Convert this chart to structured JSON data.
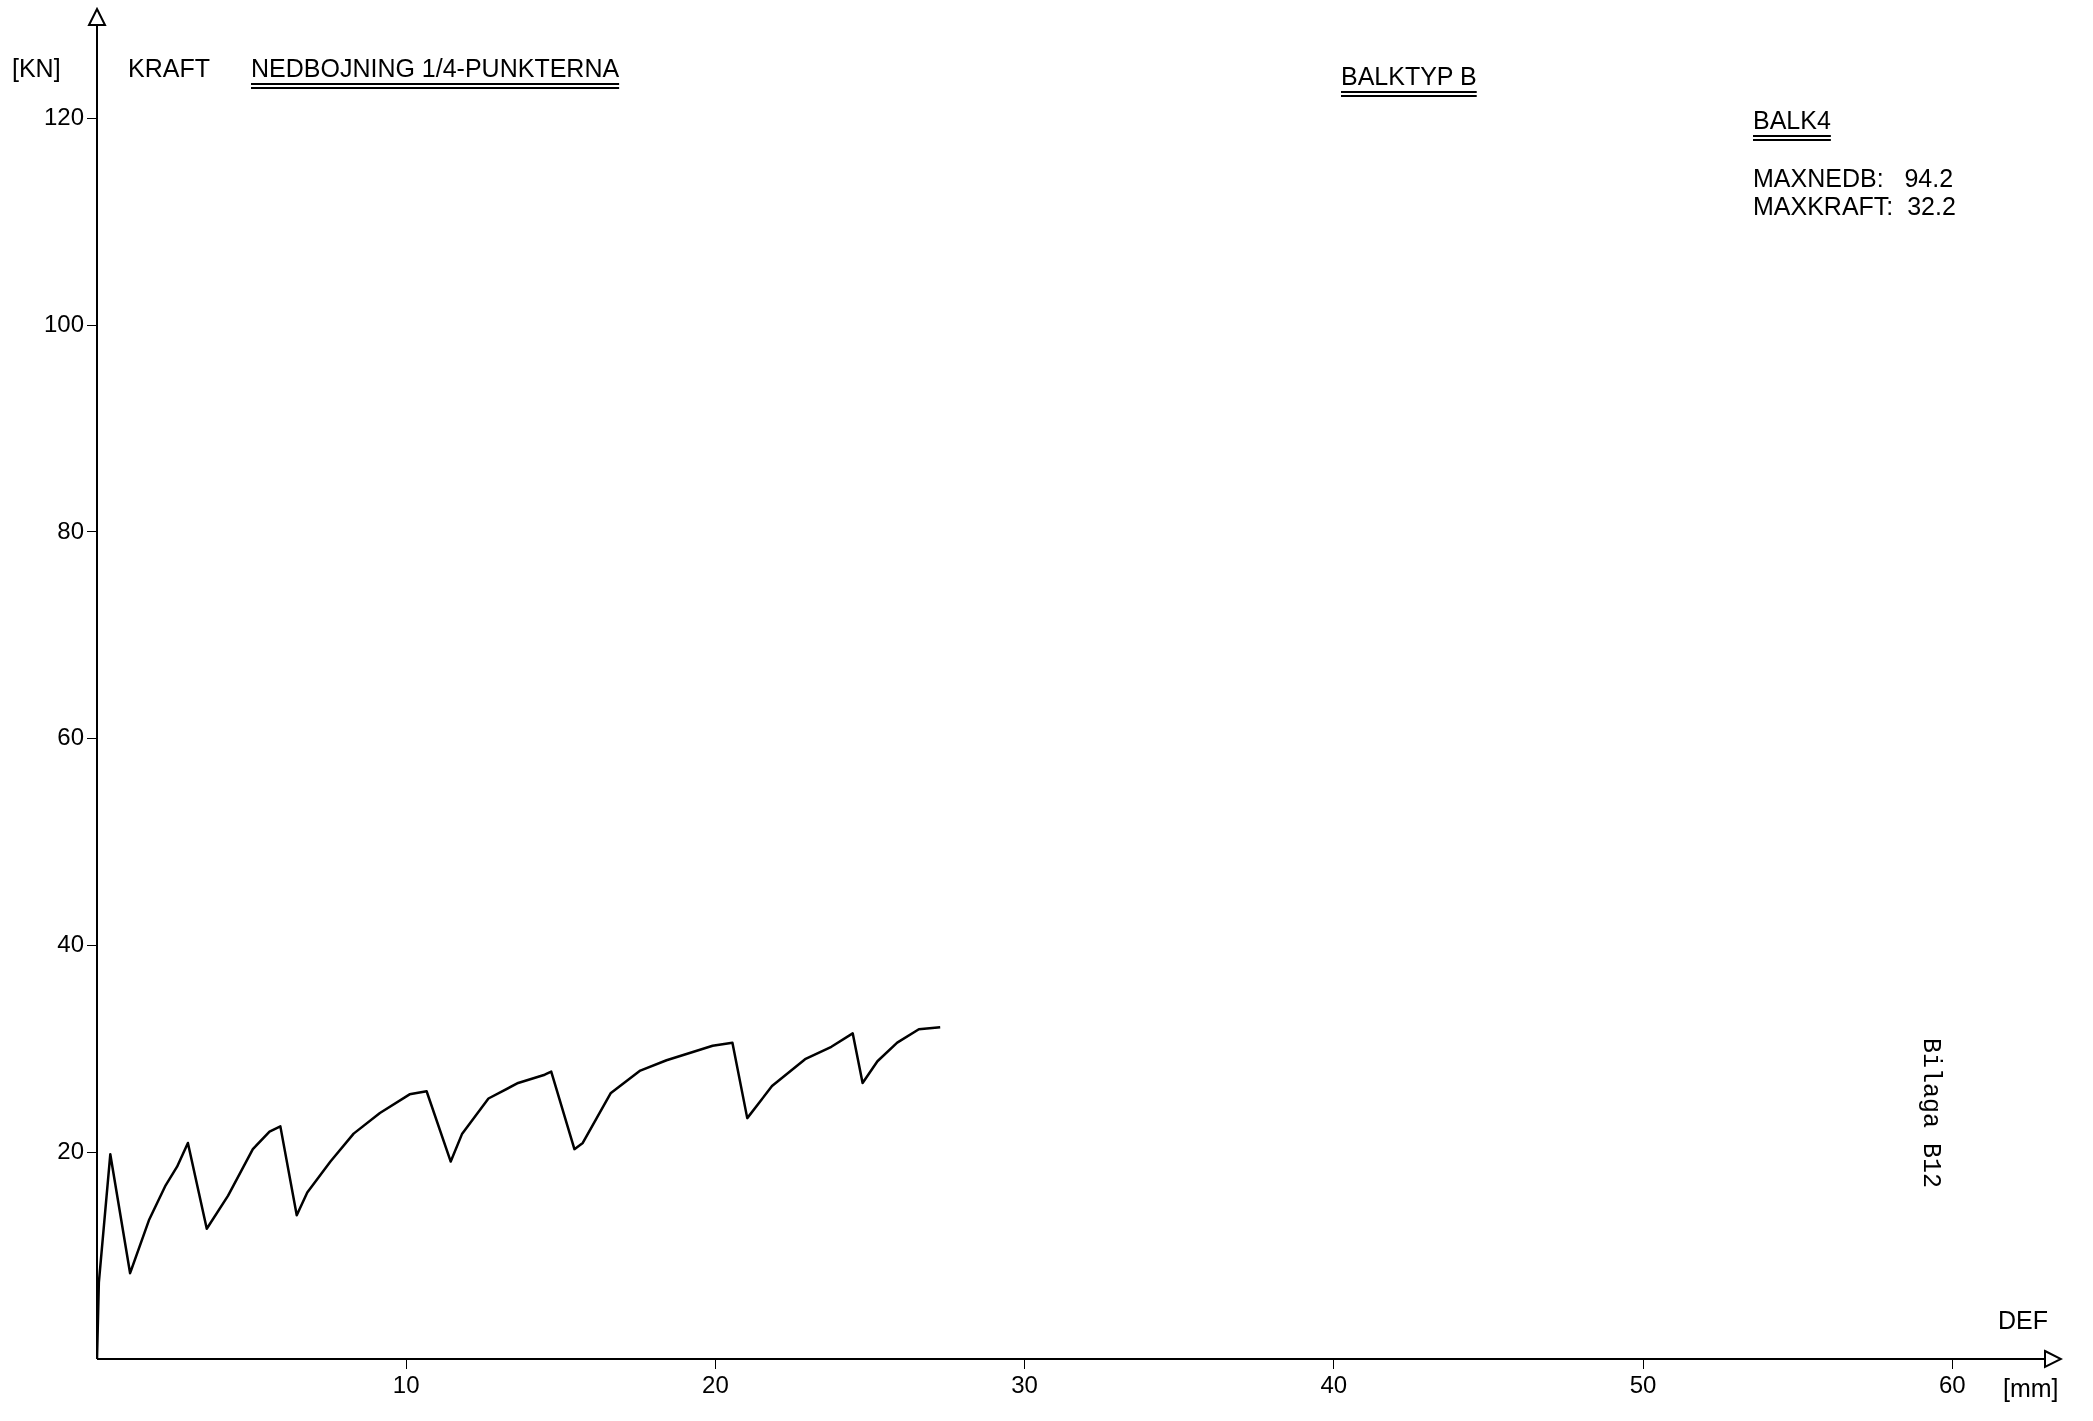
{
  "chart_data": {
    "type": "line",
    "title": "NEDBOJNING 1/4-PUNKTERNA",
    "subtitle": "BALKTYP B",
    "ylabel": "KRAFT",
    "xlabel": "DEF",
    "annotations": [
      "[KN]",
      "[mm]",
      "BALK4",
      "MAXNEDB:   94.2",
      "MAXKRAFT:  32.2",
      "Bilaga B12"
    ],
    "xlim": [
      0,
      63
    ],
    "ylim": [
      0,
      129
    ],
    "xticks": [
      10,
      20,
      30,
      40,
      50,
      60
    ],
    "yticks": [
      20,
      40,
      60,
      80,
      100,
      120
    ],
    "grid": false,
    "legend": false,
    "marker": "none",
    "line_style": "solid",
    "x": [
      0,
      0.06,
      0.43,
      1.07,
      1.69,
      2.22,
      2.59,
      2.94,
      3.55,
      4.24,
      5.04,
      5.58,
      5.93,
      6.46,
      6.8,
      7.55,
      8.3,
      9.15,
      10.11,
      10.66,
      11.44,
      11.81,
      12.66,
      13.62,
      14.48,
      14.69,
      15.44,
      15.71,
      16.61,
      17.57,
      18.42,
      19.27,
      19.91,
      20.55,
      21.03,
      21.83,
      22.9,
      23.75,
      24.44,
      24.76,
      25.24,
      25.88,
      26.58,
      27.27
    ],
    "series": [
      {
        "color": "#000000",
        "values": [
          0,
          7.4,
          19.8,
          8.3,
          13.5,
          16.8,
          18.6,
          20.9,
          12.6,
          15.8,
          20.3,
          22.0,
          22.5,
          13.9,
          16.1,
          19.1,
          21.8,
          23.8,
          25.6,
          25.9,
          19.1,
          21.8,
          25.2,
          26.7,
          27.5,
          27.8,
          20.3,
          20.9,
          25.7,
          27.9,
          28.9,
          29.7,
          30.3,
          30.6,
          23.3,
          26.4,
          29.0,
          30.2,
          31.5,
          26.7,
          28.8,
          30.6,
          31.9,
          32.1
        ]
      }
    ]
  }
}
